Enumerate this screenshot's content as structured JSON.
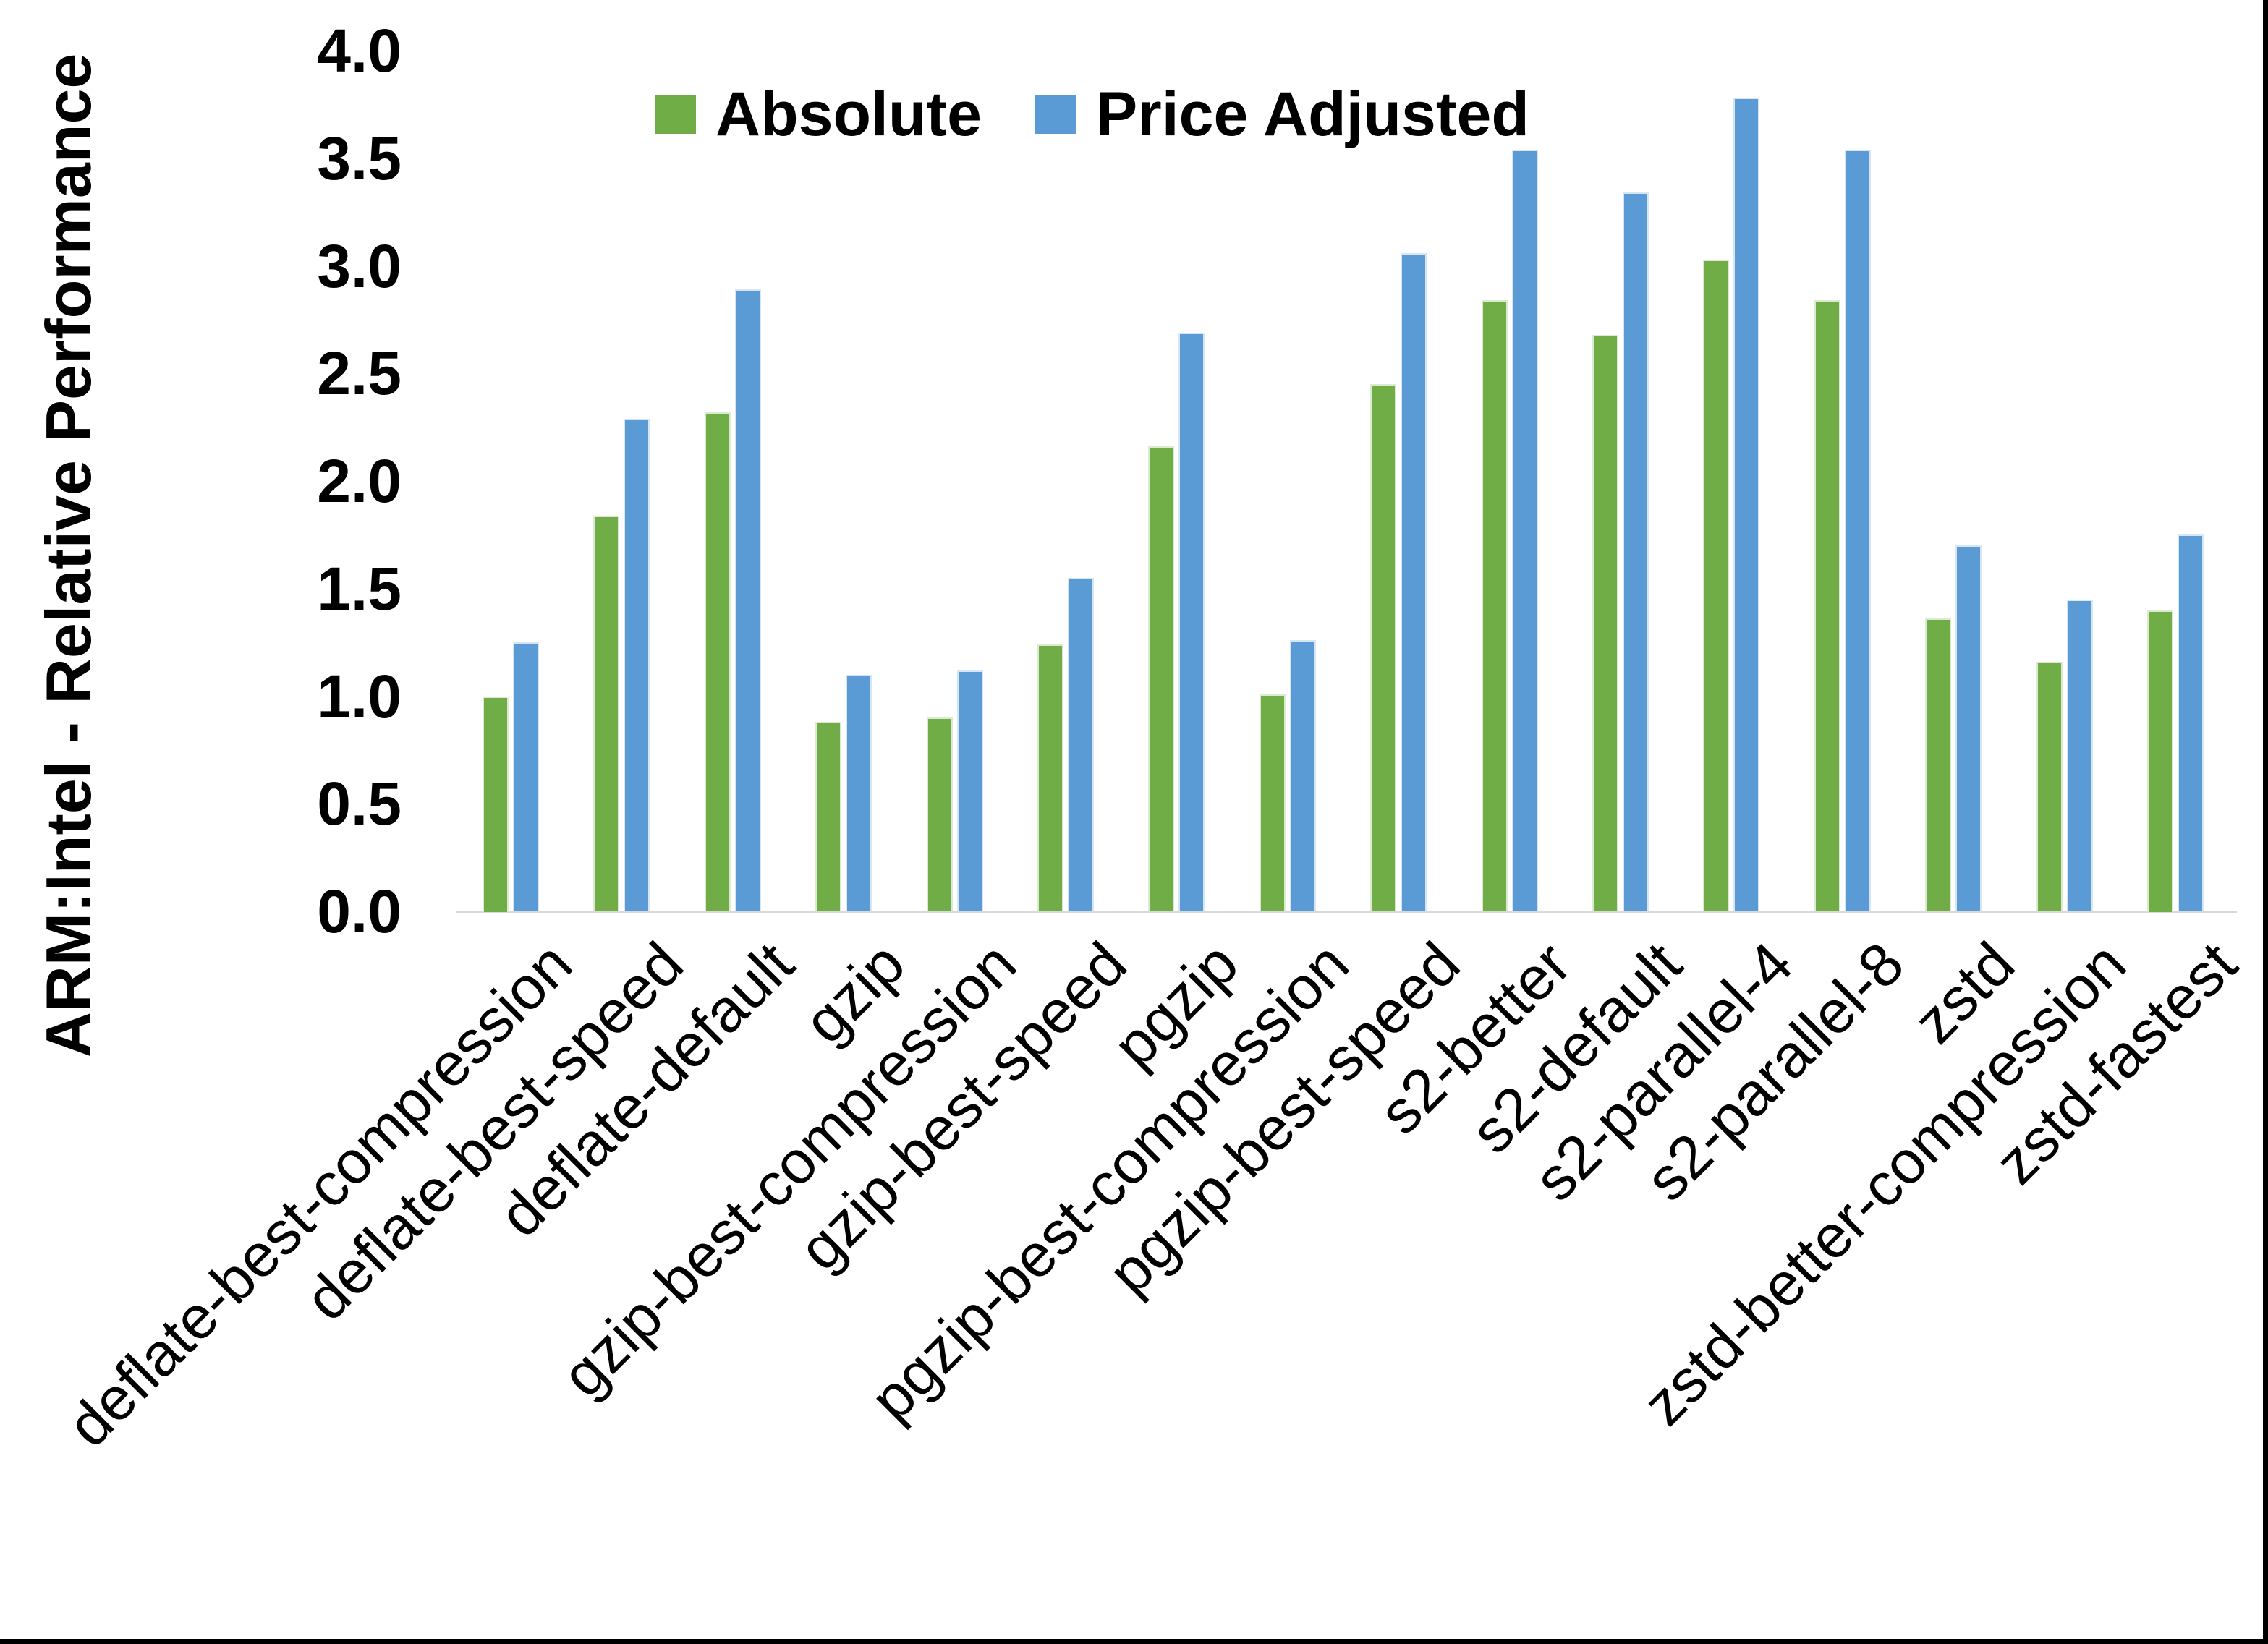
{
  "page": {
    "background": "#ffffff",
    "frame_color": "#000000"
  },
  "chart_data": {
    "type": "bar",
    "title": "",
    "y_axis_title": "ARM:Intel - Relative Performance",
    "xlabel": "",
    "ylabel": "ARM:Intel - Relative Performance",
    "legend_position": "top",
    "grid": false,
    "ylim": [
      0.0,
      4.0
    ],
    "y_ticks": [
      "0.0",
      "0.5",
      "1.0",
      "1.5",
      "2.0",
      "2.5",
      "3.0",
      "3.5",
      "4.0"
    ],
    "legend": [
      "Absolute",
      "Price Adjusted"
    ],
    "categories": [
      "deflate-best-compression",
      "deflate-best-speed",
      "deflate-default",
      "gzip",
      "gzip-best-compression",
      "gzip-best-speed",
      "pgzip",
      "pgzip-best-compression",
      "pgzip-best-speed",
      "s2-better",
      "s2-default",
      "s2-parallel-4",
      "s2-parallel-8",
      "zstd",
      "zstd-better-compression",
      "zstd-fastest"
    ],
    "series": [
      {
        "name": "Absolute",
        "color": "#70AD47",
        "values": [
          1.0,
          1.84,
          2.32,
          0.88,
          0.9,
          1.24,
          2.16,
          1.01,
          2.45,
          2.84,
          2.68,
          3.03,
          2.84,
          1.36,
          1.16,
          1.4
        ]
      },
      {
        "name": "Price Adjusted",
        "color": "#5B9BD5",
        "values": [
          1.25,
          2.29,
          2.89,
          1.1,
          1.12,
          1.55,
          2.69,
          1.26,
          3.06,
          3.54,
          3.34,
          3.78,
          3.54,
          1.7,
          1.45,
          1.75
        ]
      }
    ]
  }
}
